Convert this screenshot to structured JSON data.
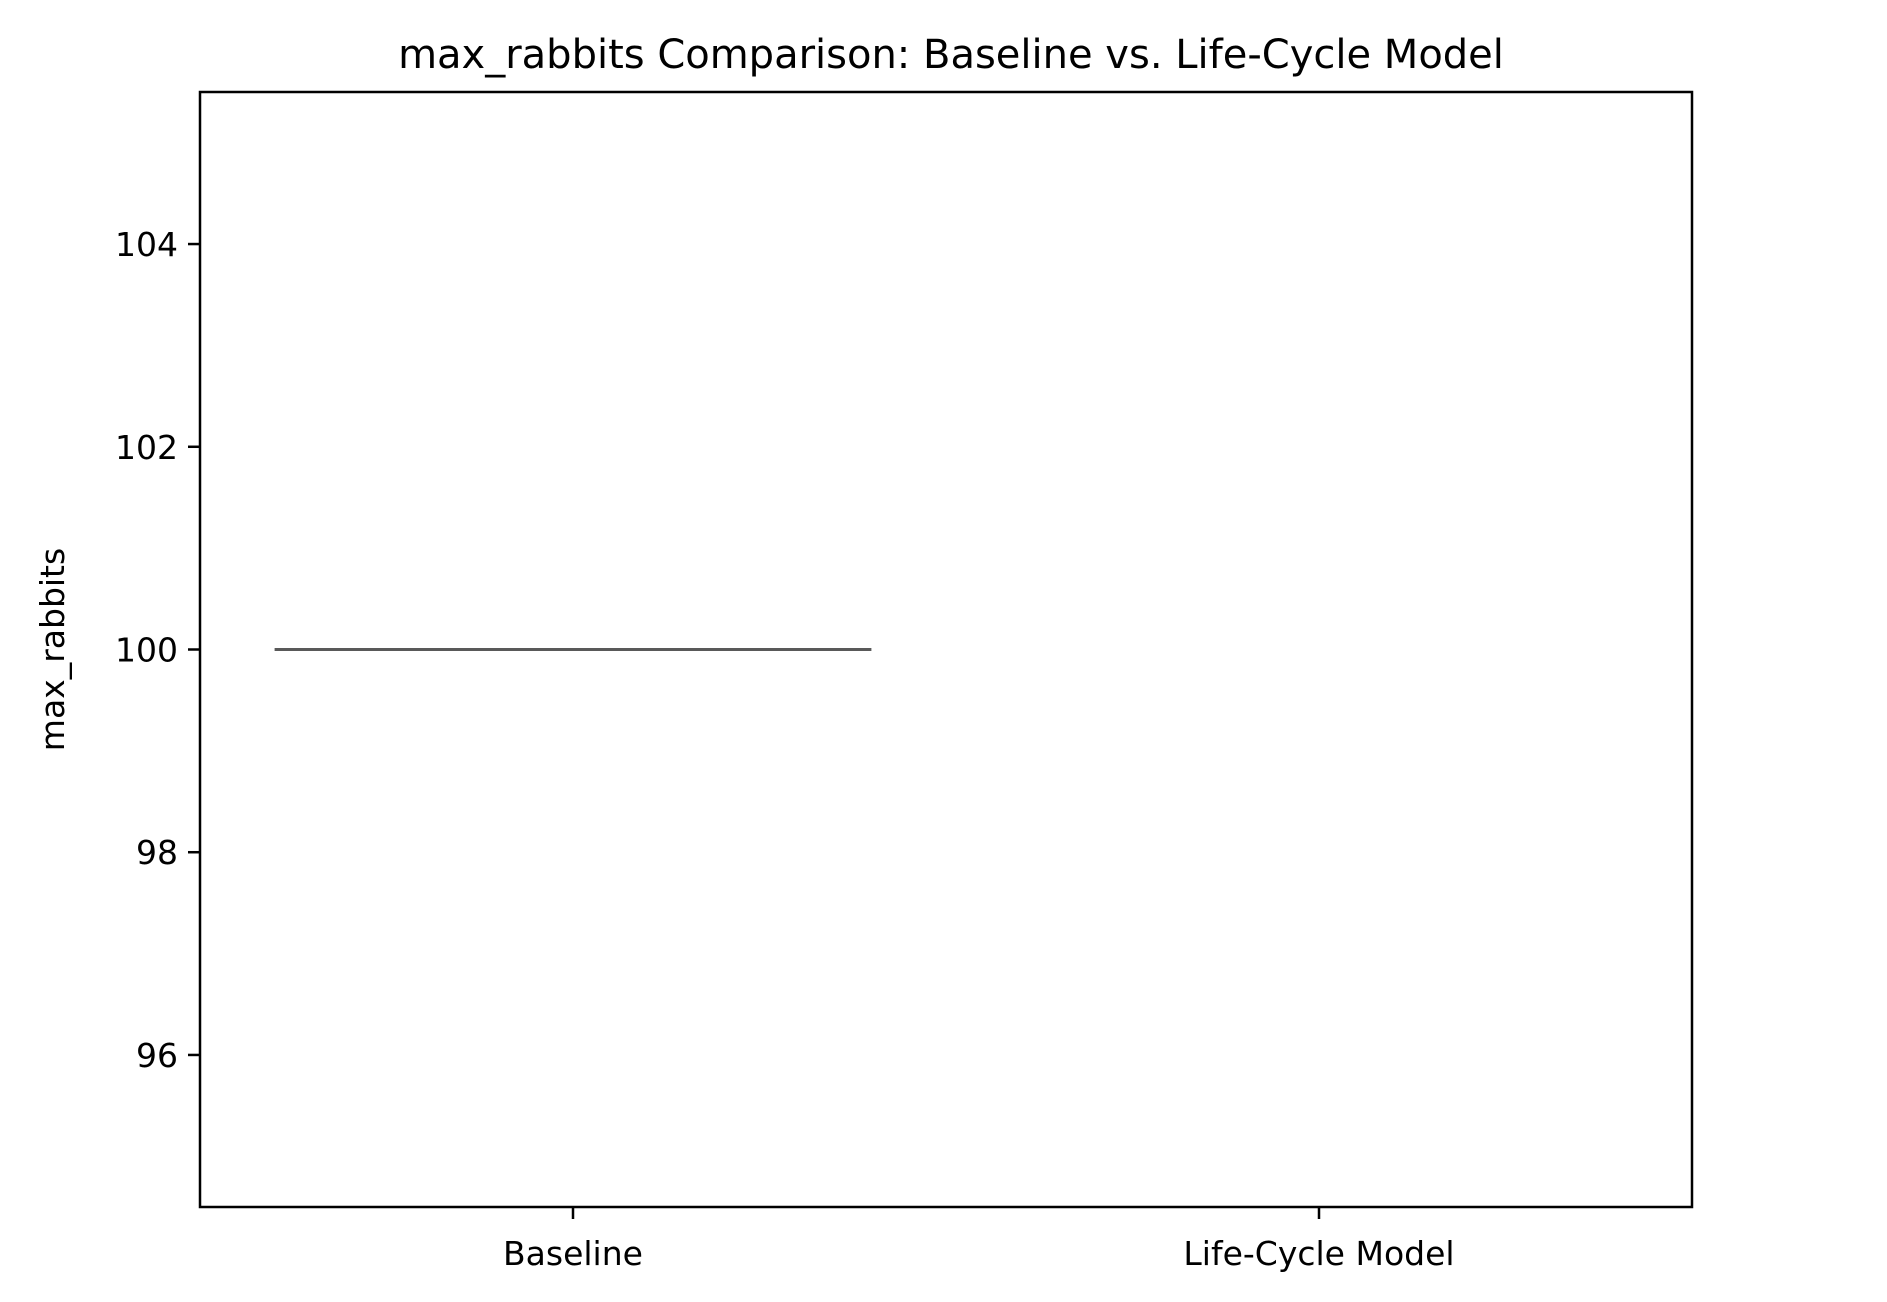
{
  "chart_data": {
    "type": "box",
    "title": "max_rabbits Comparison: Baseline vs. Life-Cycle Model",
    "xlabel": "",
    "ylabel": "max_rabbits",
    "categories": [
      "Baseline",
      "Life-Cycle Model"
    ],
    "yticks": [
      96,
      98,
      100,
      102,
      104
    ],
    "ylim": [
      94.5,
      105.5
    ],
    "boxes": [
      {
        "category": "Baseline",
        "min": 100,
        "q1": 100,
        "median": 100,
        "q3": 100,
        "max": 100
      },
      {
        "category": "Life-Cycle Model",
        "min": null,
        "q1": null,
        "median": null,
        "q3": null,
        "max": null
      }
    ],
    "grid": false,
    "box_color": "#595959",
    "axis_color": "#000000"
  }
}
